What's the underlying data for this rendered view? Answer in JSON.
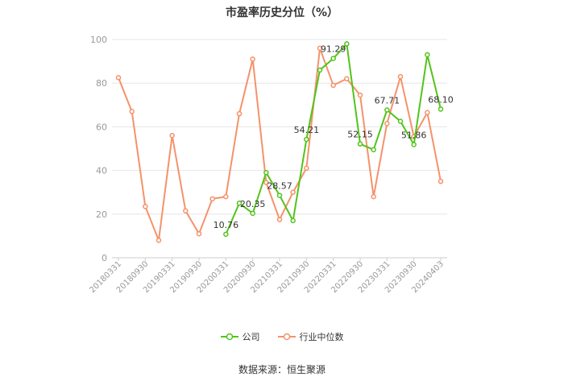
{
  "chart_data": {
    "type": "line",
    "title": "市盈率历史分位（%）",
    "x": [
      "20180331",
      "20180630",
      "20180930",
      "20181231",
      "20190331",
      "20190630",
      "20190930",
      "20191231",
      "20200331",
      "20200630",
      "20200930",
      "20201231",
      "20210331",
      "20210630",
      "20210930",
      "20211231",
      "20220331",
      "20220630",
      "20220930",
      "20221231",
      "20230331",
      "20230630",
      "20230930",
      "20231231",
      "20240403"
    ],
    "tick_labels": [
      "20180331",
      "20180930",
      "20190331",
      "20190930",
      "20200331",
      "20200930",
      "20210331",
      "20210930",
      "20220331",
      "20220930",
      "20230331",
      "20230930",
      "20240403"
    ],
    "ylim": [
      0,
      100
    ],
    "yticks": [
      0,
      20,
      40,
      60,
      80,
      100
    ],
    "grid": true,
    "legend_position": "bottom",
    "series": [
      {
        "name": "公司",
        "color": "#52c41a",
        "values": [
          null,
          null,
          null,
          null,
          null,
          null,
          null,
          null,
          10.76,
          25,
          20.35,
          39,
          28.57,
          17,
          54.21,
          86,
          91.29,
          98,
          52.15,
          49.5,
          67.71,
          62.5,
          51.86,
          93,
          68.1
        ],
        "labels": {
          "8": "10.76",
          "10": "20.35",
          "12": "28.57",
          "14": "54.21",
          "16": "91.29",
          "18": "52.15",
          "20": "67.71",
          "22": "51.86",
          "24": "68.10"
        }
      },
      {
        "name": "行业中位数",
        "color": "#f5926a",
        "values": [
          82.5,
          67,
          23.5,
          8,
          56,
          21.5,
          11,
          27,
          28,
          66,
          91,
          34.5,
          17.5,
          30,
          41,
          96,
          79,
          82,
          74.5,
          28,
          61.5,
          83,
          55.5,
          66.5,
          35
        ]
      }
    ]
  },
  "source": "数据来源：恒生聚源"
}
